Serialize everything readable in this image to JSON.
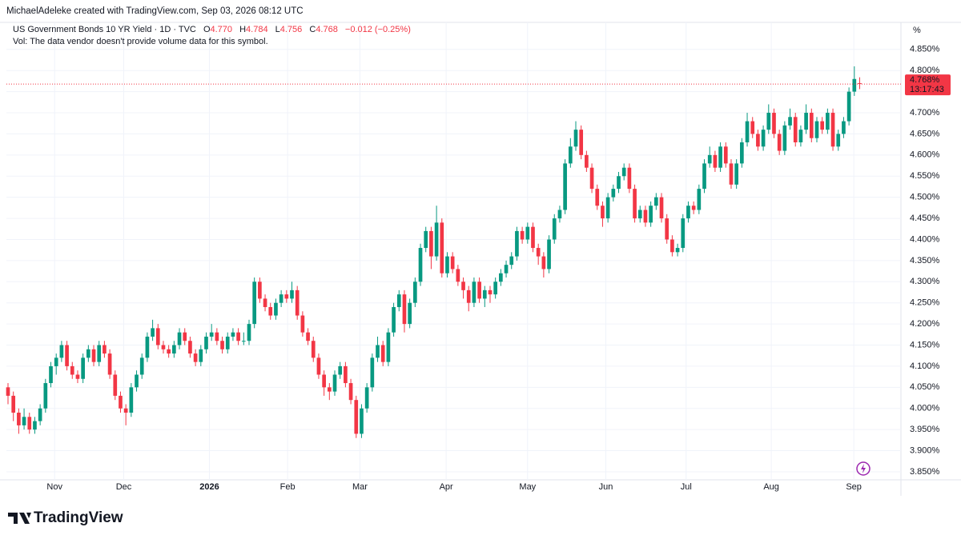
{
  "credit": "MichaelAdeleke created with TradingView.com, Sep 03, 2026 08:12 UTC",
  "brand": "TradingView",
  "chart_data": {
    "type": "candlestick",
    "title": "US Government Bonds 10 YR Yield · 1D · TVC",
    "ohlc_legend": {
      "open_key": "O",
      "open": "4.770",
      "high_key": "H",
      "high": "4.784",
      "low_key": "L",
      "low": "4.756",
      "close_key": "C",
      "close": "4.768",
      "change": "−0.012 (−0.25%)"
    },
    "volume_note": "Vol: The data vendor doesn't provide volume data for this symbol.",
    "y_unit": "%",
    "last_price_label": "4.768%",
    "countdown": "13:17:43",
    "up_color": "#089981",
    "down_color": "#f23645",
    "grid": true,
    "xlim": [
      -0.3,
      166.7
    ],
    "xticks": [
      {
        "value": 8.7,
        "label": "Nov"
      },
      {
        "value": 21.6,
        "label": "Dec"
      },
      {
        "value": 37.6,
        "label": "2026"
      },
      {
        "value": 52.2,
        "label": "Feb"
      },
      {
        "value": 65.7,
        "label": "Mar"
      },
      {
        "value": 81.8,
        "label": "Apr"
      },
      {
        "value": 97,
        "label": "May"
      },
      {
        "value": 111.6,
        "label": "Jun"
      },
      {
        "value": 126.6,
        "label": "Jul"
      },
      {
        "value": 142.5,
        "label": "Aug"
      },
      {
        "value": 157.9,
        "label": "Sep"
      }
    ],
    "ylim": [
      3.831,
      4.914
    ],
    "yticks": [
      {
        "value": 3.85,
        "label": "3.850%"
      },
      {
        "value": 3.9,
        "label": "3.900%"
      },
      {
        "value": 3.95,
        "label": "3.950%"
      },
      {
        "value": 4.0,
        "label": "4.000%"
      },
      {
        "value": 4.05,
        "label": "4.050%"
      },
      {
        "value": 4.1,
        "label": "4.100%"
      },
      {
        "value": 4.15,
        "label": "4.150%"
      },
      {
        "value": 4.2,
        "label": "4.200%"
      },
      {
        "value": 4.25,
        "label": "4.250%"
      },
      {
        "value": 4.3,
        "label": "4.300%"
      },
      {
        "value": 4.35,
        "label": "4.350%"
      },
      {
        "value": 4.4,
        "label": "4.400%"
      },
      {
        "value": 4.45,
        "label": "4.450%"
      },
      {
        "value": 4.5,
        "label": "4.500%"
      },
      {
        "value": 4.55,
        "label": "4.550%"
      },
      {
        "value": 4.6,
        "label": "4.600%"
      },
      {
        "value": 4.65,
        "label": "4.650%"
      },
      {
        "value": 4.7,
        "label": "4.700%"
      },
      {
        "value": 4.75,
        "label": "4.750%"
      },
      {
        "value": 4.8,
        "label": "4.800%"
      },
      {
        "value": 4.85,
        "label": "4.850%"
      }
    ],
    "candles": [
      [
        4.05,
        4.06,
        4.01,
        4.03
      ],
      [
        4.03,
        4.04,
        3.97,
        3.99
      ],
      [
        3.99,
        4.0,
        3.94,
        3.96
      ],
      [
        3.96,
        4.0,
        3.95,
        3.98
      ],
      [
        3.98,
        3.99,
        3.94,
        3.95
      ],
      [
        3.95,
        3.98,
        3.94,
        3.97
      ],
      [
        3.97,
        4.01,
        3.96,
        4.0
      ],
      [
        4.0,
        4.07,
        3.99,
        4.06
      ],
      [
        4.06,
        4.11,
        4.05,
        4.1
      ],
      [
        4.1,
        4.13,
        4.08,
        4.12
      ],
      [
        4.12,
        4.16,
        4.11,
        4.15
      ],
      [
        4.15,
        4.16,
        4.09,
        4.1
      ],
      [
        4.1,
        4.11,
        4.07,
        4.08
      ],
      [
        4.08,
        4.09,
        4.06,
        4.07
      ],
      [
        4.07,
        4.13,
        4.06,
        4.12
      ],
      [
        4.12,
        4.15,
        4.11,
        4.14
      ],
      [
        4.14,
        4.15,
        4.1,
        4.11
      ],
      [
        4.11,
        4.16,
        4.1,
        4.15
      ],
      [
        4.15,
        4.16,
        4.12,
        4.13
      ],
      [
        4.13,
        4.14,
        4.07,
        4.08
      ],
      [
        4.08,
        4.09,
        4.02,
        4.03
      ],
      [
        4.03,
        4.04,
        3.99,
        4.0
      ],
      [
        4.0,
        4.01,
        3.96,
        3.99
      ],
      [
        3.99,
        4.06,
        3.98,
        4.05
      ],
      [
        4.05,
        4.09,
        4.04,
        4.08
      ],
      [
        4.08,
        4.13,
        4.07,
        4.12
      ],
      [
        4.12,
        4.18,
        4.11,
        4.17
      ],
      [
        4.17,
        4.21,
        4.16,
        4.19
      ],
      [
        4.19,
        4.2,
        4.14,
        4.15
      ],
      [
        4.15,
        4.16,
        4.13,
        4.14
      ],
      [
        4.14,
        4.15,
        4.12,
        4.13
      ],
      [
        4.13,
        4.16,
        4.12,
        4.15
      ],
      [
        4.15,
        4.19,
        4.14,
        4.18
      ],
      [
        4.18,
        4.19,
        4.15,
        4.16
      ],
      [
        4.16,
        4.17,
        4.12,
        4.13
      ],
      [
        4.13,
        4.14,
        4.1,
        4.11
      ],
      [
        4.11,
        4.15,
        4.1,
        4.14
      ],
      [
        4.14,
        4.18,
        4.13,
        4.17
      ],
      [
        4.17,
        4.2,
        4.16,
        4.18
      ],
      [
        4.18,
        4.19,
        4.15,
        4.16
      ],
      [
        4.16,
        4.17,
        4.13,
        4.14
      ],
      [
        4.14,
        4.18,
        4.13,
        4.17
      ],
      [
        4.17,
        4.19,
        4.16,
        4.18
      ],
      [
        4.18,
        4.19,
        4.15,
        4.16
      ],
      [
        4.16,
        4.18,
        4.15,
        4.16
      ],
      [
        4.16,
        4.21,
        4.15,
        4.2
      ],
      [
        4.2,
        4.31,
        4.19,
        4.3
      ],
      [
        4.3,
        4.31,
        4.25,
        4.26
      ],
      [
        4.26,
        4.27,
        4.23,
        4.24
      ],
      [
        4.24,
        4.25,
        4.21,
        4.22
      ],
      [
        4.22,
        4.26,
        4.21,
        4.25
      ],
      [
        4.25,
        4.28,
        4.24,
        4.27
      ],
      [
        4.27,
        4.28,
        4.25,
        4.26
      ],
      [
        4.26,
        4.3,
        4.25,
        4.28
      ],
      [
        4.28,
        4.29,
        4.21,
        4.22
      ],
      [
        4.22,
        4.23,
        4.17,
        4.18
      ],
      [
        4.18,
        4.19,
        4.15,
        4.16
      ],
      [
        4.16,
        4.17,
        4.11,
        4.12
      ],
      [
        4.12,
        4.13,
        4.07,
        4.08
      ],
      [
        4.08,
        4.09,
        4.03,
        4.05
      ],
      [
        4.05,
        4.06,
        4.02,
        4.04
      ],
      [
        4.04,
        4.09,
        4.03,
        4.08
      ],
      [
        4.08,
        4.11,
        4.07,
        4.1
      ],
      [
        4.1,
        4.11,
        4.05,
        4.06
      ],
      [
        4.06,
        4.07,
        4.01,
        4.02
      ],
      [
        4.02,
        4.03,
        3.93,
        3.94
      ],
      [
        3.94,
        4.01,
        3.93,
        4.0
      ],
      [
        4.0,
        4.06,
        3.99,
        4.05
      ],
      [
        4.05,
        4.13,
        4.04,
        4.12
      ],
      [
        4.12,
        4.17,
        4.11,
        4.15
      ],
      [
        4.15,
        4.16,
        4.1,
        4.11
      ],
      [
        4.11,
        4.19,
        4.1,
        4.18
      ],
      [
        4.18,
        4.25,
        4.17,
        4.24
      ],
      [
        4.24,
        4.28,
        4.23,
        4.27
      ],
      [
        4.27,
        4.28,
        4.18,
        4.2
      ],
      [
        4.2,
        4.26,
        4.19,
        4.25
      ],
      [
        4.25,
        4.31,
        4.24,
        4.3
      ],
      [
        4.3,
        4.39,
        4.29,
        4.38
      ],
      [
        4.38,
        4.43,
        4.37,
        4.42
      ],
      [
        4.42,
        4.43,
        4.33,
        4.36
      ],
      [
        4.36,
        4.48,
        4.35,
        4.44
      ],
      [
        4.44,
        4.45,
        4.31,
        4.32
      ],
      [
        4.32,
        4.37,
        4.31,
        4.36
      ],
      [
        4.36,
        4.37,
        4.32,
        4.33
      ],
      [
        4.33,
        4.34,
        4.29,
        4.3
      ],
      [
        4.3,
        4.31,
        4.26,
        4.28
      ],
      [
        4.28,
        4.29,
        4.23,
        4.25
      ],
      [
        4.25,
        4.31,
        4.24,
        4.3
      ],
      [
        4.3,
        4.31,
        4.25,
        4.26
      ],
      [
        4.26,
        4.29,
        4.24,
        4.28
      ],
      [
        4.28,
        4.29,
        4.25,
        4.27
      ],
      [
        4.27,
        4.31,
        4.26,
        4.3
      ],
      [
        4.3,
        4.33,
        4.29,
        4.32
      ],
      [
        4.32,
        4.35,
        4.31,
        4.34
      ],
      [
        4.34,
        4.37,
        4.33,
        4.36
      ],
      [
        4.36,
        4.43,
        4.35,
        4.42
      ],
      [
        4.42,
        4.43,
        4.39,
        4.4
      ],
      [
        4.4,
        4.44,
        4.39,
        4.43
      ],
      [
        4.43,
        4.44,
        4.37,
        4.38
      ],
      [
        4.38,
        4.39,
        4.34,
        4.36
      ],
      [
        4.36,
        4.37,
        4.31,
        4.33
      ],
      [
        4.33,
        4.41,
        4.32,
        4.4
      ],
      [
        4.4,
        4.46,
        4.39,
        4.45
      ],
      [
        4.45,
        4.48,
        4.44,
        4.47
      ],
      [
        4.47,
        4.59,
        4.46,
        4.58
      ],
      [
        4.58,
        4.64,
        4.57,
        4.62
      ],
      [
        4.62,
        4.68,
        4.61,
        4.66
      ],
      [
        4.66,
        4.67,
        4.59,
        4.6
      ],
      [
        4.6,
        4.61,
        4.56,
        4.57
      ],
      [
        4.57,
        4.58,
        4.51,
        4.52
      ],
      [
        4.52,
        4.53,
        4.47,
        4.48
      ],
      [
        4.48,
        4.49,
        4.43,
        4.45
      ],
      [
        4.45,
        4.51,
        4.44,
        4.5
      ],
      [
        4.5,
        4.53,
        4.49,
        4.52
      ],
      [
        4.52,
        4.56,
        4.51,
        4.55
      ],
      [
        4.55,
        4.58,
        4.54,
        4.57
      ],
      [
        4.57,
        4.58,
        4.51,
        4.52
      ],
      [
        4.52,
        4.53,
        4.44,
        4.45
      ],
      [
        4.45,
        4.48,
        4.44,
        4.47
      ],
      [
        4.47,
        4.48,
        4.43,
        4.44
      ],
      [
        4.44,
        4.49,
        4.43,
        4.48
      ],
      [
        4.48,
        4.51,
        4.47,
        4.5
      ],
      [
        4.5,
        4.51,
        4.44,
        4.45
      ],
      [
        4.45,
        4.46,
        4.39,
        4.4
      ],
      [
        4.4,
        4.41,
        4.36,
        4.37
      ],
      [
        4.37,
        4.39,
        4.36,
        4.38
      ],
      [
        4.38,
        4.46,
        4.37,
        4.45
      ],
      [
        4.45,
        4.49,
        4.44,
        4.48
      ],
      [
        4.48,
        4.49,
        4.46,
        4.47
      ],
      [
        4.47,
        4.53,
        4.46,
        4.52
      ],
      [
        4.52,
        4.59,
        4.51,
        4.58
      ],
      [
        4.58,
        4.62,
        4.57,
        4.6
      ],
      [
        4.6,
        4.61,
        4.56,
        4.57
      ],
      [
        4.57,
        4.63,
        4.56,
        4.62
      ],
      [
        4.62,
        4.63,
        4.57,
        4.58
      ],
      [
        4.58,
        4.59,
        4.52,
        4.53
      ],
      [
        4.53,
        4.59,
        4.52,
        4.58
      ],
      [
        4.58,
        4.64,
        4.57,
        4.63
      ],
      [
        4.63,
        4.7,
        4.62,
        4.68
      ],
      [
        4.68,
        4.69,
        4.64,
        4.65
      ],
      [
        4.65,
        4.66,
        4.61,
        4.62
      ],
      [
        4.62,
        4.67,
        4.61,
        4.66
      ],
      [
        4.66,
        4.72,
        4.65,
        4.7
      ],
      [
        4.7,
        4.71,
        4.64,
        4.65
      ],
      [
        4.65,
        4.66,
        4.6,
        4.61
      ],
      [
        4.61,
        4.68,
        4.6,
        4.67
      ],
      [
        4.67,
        4.71,
        4.66,
        4.69
      ],
      [
        4.69,
        4.7,
        4.62,
        4.63
      ],
      [
        4.63,
        4.67,
        4.62,
        4.66
      ],
      [
        4.66,
        4.72,
        4.65,
        4.7
      ],
      [
        4.7,
        4.71,
        4.63,
        4.64
      ],
      [
        4.64,
        4.69,
        4.63,
        4.68
      ],
      [
        4.68,
        4.69,
        4.65,
        4.66
      ],
      [
        4.66,
        4.71,
        4.65,
        4.7
      ],
      [
        4.7,
        4.71,
        4.61,
        4.62
      ],
      [
        4.62,
        4.66,
        4.61,
        4.65
      ],
      [
        4.65,
        4.69,
        4.64,
        4.68
      ],
      [
        4.68,
        4.76,
        4.67,
        4.75
      ],
      [
        4.75,
        4.81,
        4.74,
        4.78
      ],
      [
        4.77,
        4.784,
        4.756,
        4.768
      ]
    ]
  }
}
